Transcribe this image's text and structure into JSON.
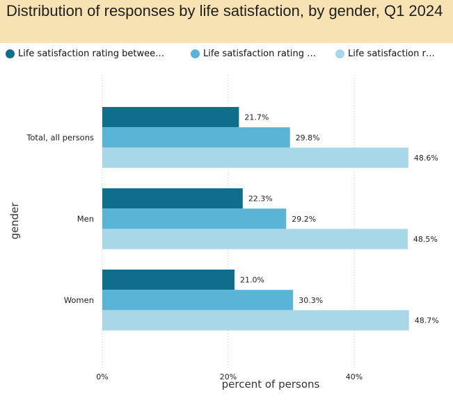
{
  "chart_data": {
    "type": "bar",
    "orientation": "horizontal",
    "title": "Distribution of responses by life satisfaction, by gender, Q1 2024",
    "xlabel": "percent of persons",
    "ylabel": "gender",
    "categories": [
      "Total, all persons",
      "Men",
      "Women"
    ],
    "series": [
      {
        "name": "Life satisfaction rating betwee…",
        "color": "#0e6e8c",
        "values": [
          21.7,
          22.3,
          21.0
        ]
      },
      {
        "name": "Life satisfaction rating …",
        "color": "#5ab4d6",
        "values": [
          29.8,
          29.2,
          30.3
        ]
      },
      {
        "name": "Life satisfaction r…",
        "color": "#a8d8e8",
        "values": [
          48.6,
          48.5,
          48.7
        ]
      }
    ],
    "value_suffix": "%",
    "xlim": [
      0,
      50
    ],
    "xticks": [
      0,
      20,
      40
    ],
    "xtick_labels": [
      "0%",
      "20%",
      "40%"
    ],
    "grid": true,
    "legend_position": "top"
  }
}
